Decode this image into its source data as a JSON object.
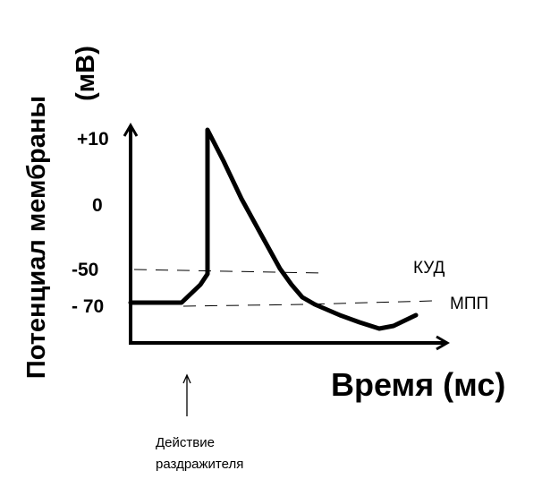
{
  "diagram": {
    "title_y_line1": "Потенциал мембраны",
    "title_y_line2": "(мВ)",
    "title_x": "Время (мс)",
    "y_ticks": [
      "+10",
      "0",
      "-50",
      "- 70"
    ],
    "levels": {
      "threshold": "КУД",
      "resting": "МПП"
    },
    "stimulus_line1": "Действие",
    "stimulus_line2": "раздражителя",
    "colors": {
      "line": "#000000",
      "background": "#ffffff"
    }
  }
}
